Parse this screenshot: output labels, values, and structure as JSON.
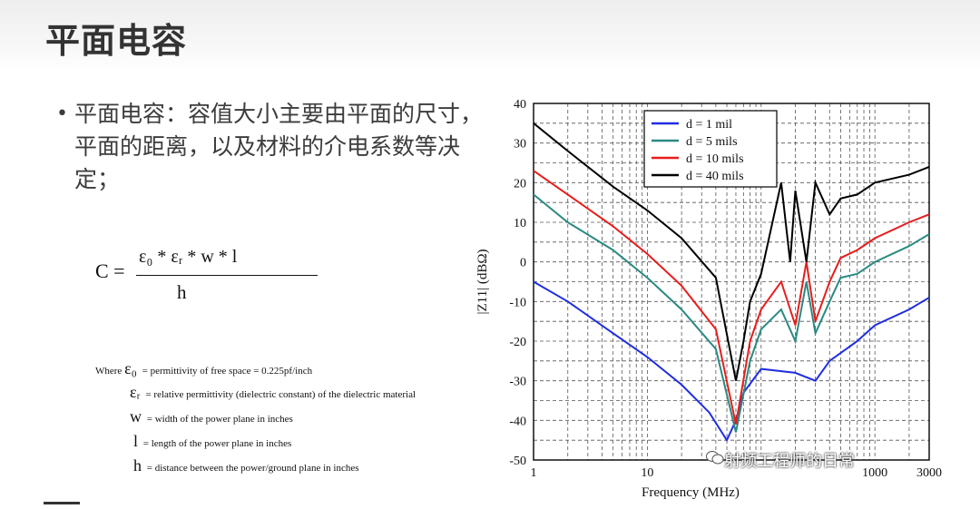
{
  "slide": {
    "title": "平面电容",
    "bullet": "平面电容：容值大小主要由平面的尺寸，平面的距离，以及材料的介电系数等决定；"
  },
  "formula": {
    "lhs": "C =",
    "numerator": "ε₀ * εᵣ * w * l",
    "denominator": "h"
  },
  "definitions": [
    {
      "prefix": "Where",
      "symbol": "ε₀",
      "text": "= permittivity of free space = 0.225pf/inch"
    },
    {
      "prefix": "",
      "symbol": "εᵣ",
      "text": "= relative permittivity (dielectric constant) of the dielectric material"
    },
    {
      "prefix": "",
      "symbol": "w",
      "text": "= width of the power plane in inches"
    },
    {
      "prefix": "",
      "symbol": "l",
      "text": "= length of the power plane in inches"
    },
    {
      "prefix": "",
      "symbol": "h",
      "text": "= distance between the power/ground plane in inches"
    }
  ],
  "watermark": {
    "text": "射频工程师的日常",
    "icon": "wechat-icon"
  },
  "chart_data": {
    "type": "line",
    "xlabel": "Frequency (MHz)",
    "ylabel": "|Z11| (dBΩ)",
    "xscale": "log",
    "xlim": [
      1,
      3000
    ],
    "ylim": [
      -50,
      40
    ],
    "xticks": [
      1,
      10,
      100,
      1000,
      3000
    ],
    "xtick_labels": [
      "1",
      "10",
      "",
      "1000",
      "3000"
    ],
    "yticks": [
      40,
      30,
      20,
      10,
      0,
      -10,
      -20,
      -30,
      -40,
      -50
    ],
    "grid": true,
    "legend_position": "top-center",
    "series": [
      {
        "name": "d = 1 mil",
        "color": "#1f2ee0",
        "x": [
          1,
          2,
          5,
          10,
          20,
          35,
          50,
          60,
          70,
          100,
          200,
          300,
          400,
          500,
          700,
          1000,
          2000,
          3000
        ],
        "y": [
          -5,
          -10,
          -18,
          -24,
          -31,
          -38,
          -45,
          -40,
          -33,
          -27,
          -28,
          -30,
          -25,
          -23,
          -20,
          -16,
          -12,
          -9
        ]
      },
      {
        "name": "d = 5 mils",
        "color": "#2a8a82",
        "x": [
          1,
          2,
          5,
          10,
          20,
          40,
          60,
          80,
          100,
          150,
          200,
          250,
          300,
          400,
          500,
          700,
          1000,
          2000,
          3000
        ],
        "y": [
          17,
          10,
          3,
          -4,
          -12,
          -22,
          -43,
          -25,
          -17,
          -12,
          -20,
          -5,
          -18,
          -10,
          -4,
          -3,
          0,
          4,
          7
        ]
      },
      {
        "name": "d = 10 mils",
        "color": "#e81c1c",
        "x": [
          1,
          2,
          5,
          10,
          20,
          40,
          60,
          80,
          100,
          150,
          200,
          250,
          300,
          400,
          500,
          700,
          1000,
          2000,
          3000
        ],
        "y": [
          23,
          17,
          9,
          2,
          -6,
          -17,
          -41,
          -20,
          -12,
          -5,
          -16,
          0,
          -15,
          -5,
          1,
          3,
          6,
          10,
          12
        ]
      },
      {
        "name": "d = 40 mils",
        "color": "#000000",
        "x": [
          1,
          2,
          5,
          10,
          20,
          40,
          60,
          70,
          80,
          100,
          150,
          180,
          200,
          250,
          300,
          400,
          500,
          700,
          1000,
          2000,
          3000
        ],
        "y": [
          35,
          28,
          19,
          13,
          6,
          -4,
          -30,
          -20,
          -10,
          -3,
          20,
          0,
          18,
          0,
          20,
          12,
          16,
          17,
          20,
          22,
          24
        ]
      }
    ]
  }
}
